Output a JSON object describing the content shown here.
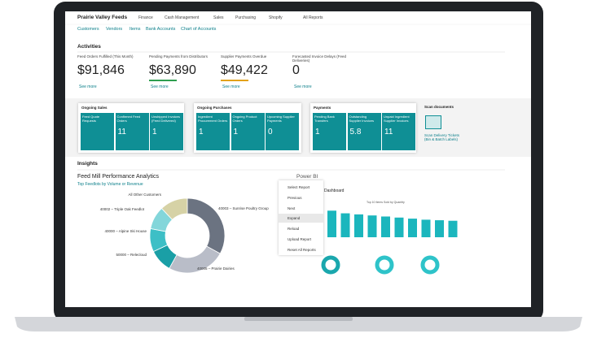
{
  "nav": {
    "company": "Prairie Valley Feeds",
    "menus": [
      "Finance",
      "Cash Management",
      "Sales",
      "Purchasing",
      "Shopify"
    ],
    "all_reports": "All Reports",
    "links": [
      "Customers",
      "Vendors",
      "Items",
      "Bank Accounts",
      "Chart of Accounts"
    ]
  },
  "activities": {
    "title": "Activities",
    "kpis": [
      {
        "label": "Feed Orders Fulfilled (This Month)",
        "value": "$91,846",
        "link": "See more"
      },
      {
        "label": "Pending Payments from Distributors",
        "value": "$63,890",
        "link": "See more"
      },
      {
        "label": "Supplier Payments Overdue",
        "value": "$49,422",
        "link": "See more"
      },
      {
        "label": "Forecasted Invoice Delays (Feed Deliveries)",
        "value": "0",
        "link": "See more"
      }
    ],
    "groups": [
      {
        "title": "Ongoing Sales",
        "tiles": [
          {
            "label": "Feed Quote Requests"
          },
          {
            "label": "Confirmed Feed Orders",
            "value": "11"
          },
          {
            "label": "Unshipped Invoices (Feed Delivered)",
            "value": "1"
          }
        ]
      },
      {
        "title": "Ongoing Purchases",
        "tiles": [
          {
            "label": "Ingredient Procurement Orders",
            "value": "1"
          },
          {
            "label": "Ongoing Product Orders",
            "value": "1"
          },
          {
            "label": "Upcoming Supplier Payments",
            "value": "0"
          }
        ]
      },
      {
        "title": "Payments",
        "tiles": [
          {
            "label": "Pending Bank Transfers",
            "value": "1"
          },
          {
            "label": "Outstanding Supplier Invoices",
            "value": "5.8"
          },
          {
            "label": "Unpaid Ingredient Supplier Invoices",
            "value": "11"
          }
        ]
      }
    ],
    "scan": {
      "title": "Scan documents",
      "link": "Scan Delivery Tickets (Bin & Batch Labels)"
    }
  },
  "insights": {
    "title": "Insights",
    "chart_title": "Feed Mill Performance Analytics",
    "subtitle": "Top Feedlots by Volume or Revenue",
    "chart_data": {
      "type": "pie",
      "categories": [
        "40003 – Sunrise Poultry Group",
        "40005 – Prairie Dairies",
        "50000 – Relecloud",
        "40000 – Alpine Ski House",
        "40002 – Triple Oak Feedlot",
        "All Other Customers"
      ],
      "values": [
        33,
        25,
        10,
        10,
        10,
        12
      ],
      "colors": [
        "#6b7381",
        "#b9bdc8",
        "#1a9fa6",
        "#3dbfc6",
        "#83d6da",
        "#d6d2a6"
      ]
    },
    "powerbi": {
      "label": "Power BI",
      "menu": [
        "Select Report",
        "Previous",
        "Next",
        "Expand",
        "Reload",
        "Upload Report",
        "Reset All Reports"
      ],
      "dashboard": "Dashboard",
      "bar_title": "Top 10 Items Sold by Quantity",
      "bars": {
        "type": "bar",
        "values": [
          100,
          90,
          86,
          82,
          78,
          74,
          70,
          66,
          64,
          62
        ],
        "ylim": [
          0,
          110
        ],
        "color": "#1bb6bd"
      }
    }
  }
}
